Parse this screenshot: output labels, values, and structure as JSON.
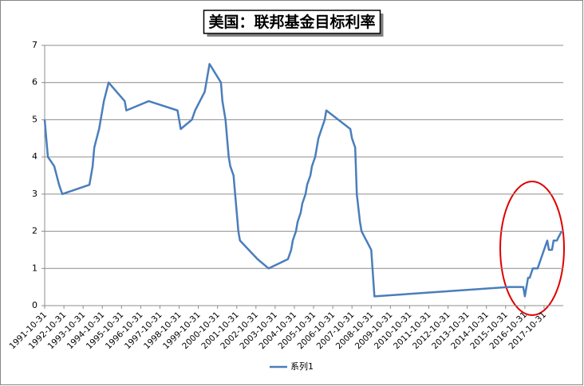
{
  "chart_data": {
    "type": "line",
    "title": "美国：联邦基金目标利率",
    "x": [
      "1991-10-31",
      "1991-11-30",
      "1991-12-31",
      "1992-04-30",
      "1992-07-31",
      "1992-09-30",
      "1994-02-28",
      "1994-03-31",
      "1994-04-30",
      "1994-05-31",
      "1994-08-31",
      "1994-11-30",
      "1995-02-28",
      "1995-07-31",
      "1995-12-31",
      "1996-01-31",
      "1997-03-31",
      "1998-09-30",
      "1998-10-31",
      "1998-11-30",
      "1999-06-30",
      "1999-08-31",
      "1999-11-30",
      "2000-02-29",
      "2000-03-31",
      "2000-05-31",
      "2001-01-03",
      "2001-01-31",
      "2001-03-31",
      "2001-04-30",
      "2001-05-31",
      "2001-06-30",
      "2001-08-31",
      "2001-09-30",
      "2001-10-31",
      "2001-11-30",
      "2001-12-31",
      "2002-11-30",
      "2003-06-30",
      "2004-06-30",
      "2004-08-31",
      "2004-09-30",
      "2004-11-30",
      "2004-12-31",
      "2005-02-28",
      "2005-03-31",
      "2005-05-31",
      "2005-06-30",
      "2005-08-31",
      "2005-09-30",
      "2005-11-30",
      "2005-12-31",
      "2006-01-31",
      "2006-03-31",
      "2006-05-31",
      "2006-06-30",
      "2007-09-30",
      "2007-10-31",
      "2007-12-31",
      "2008-01-31",
      "2008-03-31",
      "2008-04-30",
      "2008-10-31",
      "2008-12-31",
      "2015-12-31",
      "2016-09-30",
      "2016-10-31",
      "2016-11-30",
      "2016-12-31",
      "2017-01-31",
      "2017-03-31",
      "2017-06-30",
      "2017-12-31",
      "2018-01-31",
      "2018-03-31",
      "2018-04-30",
      "2018-06-30",
      "2018-09-30"
    ],
    "series": [
      {
        "name": "系列1",
        "color": "#4a7ebb",
        "values": [
          5.0,
          4.5,
          4.0,
          3.75,
          3.25,
          3.0,
          3.25,
          3.5,
          3.75,
          4.25,
          4.75,
          5.5,
          6.0,
          5.75,
          5.5,
          5.25,
          5.5,
          5.25,
          5.0,
          4.75,
          5.0,
          5.25,
          5.5,
          5.75,
          6.0,
          6.5,
          6.0,
          5.5,
          5.0,
          4.5,
          4.0,
          3.75,
          3.5,
          3.0,
          2.5,
          2.0,
          1.75,
          1.25,
          1.0,
          1.25,
          1.5,
          1.75,
          2.0,
          2.25,
          2.5,
          2.75,
          3.0,
          3.25,
          3.5,
          3.75,
          4.0,
          4.25,
          4.5,
          4.75,
          5.0,
          5.25,
          4.75,
          4.5,
          4.25,
          3.0,
          2.25,
          2.0,
          1.5,
          0.25,
          0.5,
          0.5,
          0.25,
          0.5,
          0.75,
          0.75,
          1.0,
          1.0,
          1.75,
          1.5,
          1.5,
          1.75,
          1.75,
          2.0
        ]
      }
    ],
    "xlim": [
      "1991-10-31",
      "2018-10-31"
    ],
    "xticks": [
      "1991-10-31",
      "1992-10-31",
      "1993-10-31",
      "1994-10-31",
      "1995-10-31",
      "1996-10-31",
      "1997-10-31",
      "1998-10-31",
      "1999-10-31",
      "2000-10-31",
      "2001-10-31",
      "2002-10-31",
      "2003-10-31",
      "2004-10-31",
      "2005-10-31",
      "2006-10-31",
      "2007-10-31",
      "2008-10-31",
      "2009-10-31",
      "2010-10-31",
      "2011-10-31",
      "2012-10-31",
      "2013-10-31",
      "2014-10-31",
      "2015-10-31",
      "2016-10-31",
      "2017-10-31"
    ],
    "ylim": [
      0,
      7
    ],
    "yticks": [
      0,
      1,
      2,
      3,
      4,
      5,
      6,
      7
    ],
    "grid": true,
    "legend": "bottom"
  }
}
